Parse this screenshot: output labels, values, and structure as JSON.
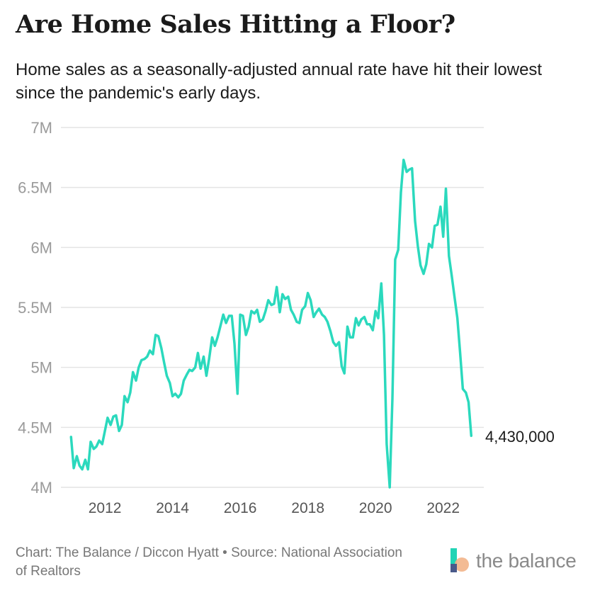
{
  "header": {
    "title": "Are Home Sales Hitting a Floor?",
    "subtitle": "Home sales as a seasonally-adjusted annual rate have hit their lowest since the pandemic's early days."
  },
  "footer": {
    "credit": "Chart: The Balance / Diccon Hyatt • Source: National Association of Realtors",
    "logo_text": "the balance"
  },
  "colors": {
    "line": "#2bd9bd",
    "grid": "#e4e4e4",
    "logo_teal": "#21d4b5",
    "logo_peach": "#f2b488"
  },
  "chart_data": {
    "type": "line",
    "title": "Are Home Sales Hitting a Floor?",
    "xlabel": "",
    "ylabel": "",
    "ylim": [
      4000000,
      7000000
    ],
    "xlim": [
      2010.7,
      2023.2
    ],
    "grid": true,
    "y_ticks": [
      {
        "value": 4000000,
        "label": "4M"
      },
      {
        "value": 4500000,
        "label": "4.5M"
      },
      {
        "value": 5000000,
        "label": "5M"
      },
      {
        "value": 5500000,
        "label": "5.5M"
      },
      {
        "value": 6000000,
        "label": "6M"
      },
      {
        "value": 6500000,
        "label": "6.5M"
      },
      {
        "value": 7000000,
        "label": "7M"
      }
    ],
    "x_ticks": [
      {
        "value": 2012,
        "label": "2012"
      },
      {
        "value": 2014,
        "label": "2014"
      },
      {
        "value": 2016,
        "label": "2016"
      },
      {
        "value": 2018,
        "label": "2018"
      },
      {
        "value": 2020,
        "label": "2020"
      },
      {
        "value": 2022,
        "label": "2022"
      }
    ],
    "end_label": "4,430,000",
    "series": [
      {
        "points": [
          [
            2011.0,
            4420000
          ],
          [
            2011.08,
            4160000
          ],
          [
            2011.17,
            4260000
          ],
          [
            2011.25,
            4180000
          ],
          [
            2011.33,
            4150000
          ],
          [
            2011.42,
            4230000
          ],
          [
            2011.5,
            4150000
          ],
          [
            2011.58,
            4380000
          ],
          [
            2011.67,
            4320000
          ],
          [
            2011.75,
            4340000
          ],
          [
            2011.83,
            4390000
          ],
          [
            2011.92,
            4360000
          ],
          [
            2012.0,
            4470000
          ],
          [
            2012.08,
            4580000
          ],
          [
            2012.17,
            4520000
          ],
          [
            2012.25,
            4590000
          ],
          [
            2012.33,
            4600000
          ],
          [
            2012.42,
            4470000
          ],
          [
            2012.5,
            4520000
          ],
          [
            2012.58,
            4760000
          ],
          [
            2012.67,
            4710000
          ],
          [
            2012.75,
            4790000
          ],
          [
            2012.83,
            4960000
          ],
          [
            2012.92,
            4890000
          ],
          [
            2013.0,
            5000000
          ],
          [
            2013.08,
            5060000
          ],
          [
            2013.17,
            5070000
          ],
          [
            2013.25,
            5090000
          ],
          [
            2013.33,
            5140000
          ],
          [
            2013.42,
            5110000
          ],
          [
            2013.5,
            5270000
          ],
          [
            2013.58,
            5260000
          ],
          [
            2013.67,
            5160000
          ],
          [
            2013.75,
            5040000
          ],
          [
            2013.83,
            4930000
          ],
          [
            2013.92,
            4870000
          ],
          [
            2014.0,
            4760000
          ],
          [
            2014.08,
            4780000
          ],
          [
            2014.17,
            4750000
          ],
          [
            2014.25,
            4780000
          ],
          [
            2014.33,
            4890000
          ],
          [
            2014.42,
            4940000
          ],
          [
            2014.5,
            4980000
          ],
          [
            2014.58,
            4970000
          ],
          [
            2014.67,
            5000000
          ],
          [
            2014.75,
            5120000
          ],
          [
            2014.83,
            4990000
          ],
          [
            2014.92,
            5090000
          ],
          [
            2015.0,
            4930000
          ],
          [
            2015.08,
            5070000
          ],
          [
            2015.17,
            5250000
          ],
          [
            2015.25,
            5180000
          ],
          [
            2015.33,
            5250000
          ],
          [
            2015.42,
            5350000
          ],
          [
            2015.5,
            5440000
          ],
          [
            2015.58,
            5370000
          ],
          [
            2015.67,
            5430000
          ],
          [
            2015.75,
            5430000
          ],
          [
            2015.83,
            5200000
          ],
          [
            2015.92,
            4780000
          ],
          [
            2016.0,
            5440000
          ],
          [
            2016.08,
            5430000
          ],
          [
            2016.17,
            5270000
          ],
          [
            2016.25,
            5340000
          ],
          [
            2016.33,
            5470000
          ],
          [
            2016.42,
            5450000
          ],
          [
            2016.5,
            5480000
          ],
          [
            2016.58,
            5380000
          ],
          [
            2016.67,
            5400000
          ],
          [
            2016.75,
            5470000
          ],
          [
            2016.83,
            5560000
          ],
          [
            2016.92,
            5520000
          ],
          [
            2017.0,
            5530000
          ],
          [
            2017.08,
            5670000
          ],
          [
            2017.17,
            5460000
          ],
          [
            2017.25,
            5610000
          ],
          [
            2017.33,
            5570000
          ],
          [
            2017.42,
            5590000
          ],
          [
            2017.5,
            5480000
          ],
          [
            2017.58,
            5440000
          ],
          [
            2017.67,
            5380000
          ],
          [
            2017.75,
            5370000
          ],
          [
            2017.83,
            5480000
          ],
          [
            2017.92,
            5510000
          ],
          [
            2018.0,
            5620000
          ],
          [
            2018.08,
            5560000
          ],
          [
            2018.17,
            5420000
          ],
          [
            2018.25,
            5460000
          ],
          [
            2018.33,
            5490000
          ],
          [
            2018.42,
            5440000
          ],
          [
            2018.5,
            5420000
          ],
          [
            2018.58,
            5380000
          ],
          [
            2018.67,
            5300000
          ],
          [
            2018.75,
            5210000
          ],
          [
            2018.83,
            5180000
          ],
          [
            2018.92,
            5210000
          ],
          [
            2019.0,
            5010000
          ],
          [
            2019.08,
            4950000
          ],
          [
            2019.17,
            5340000
          ],
          [
            2019.25,
            5250000
          ],
          [
            2019.33,
            5250000
          ],
          [
            2019.42,
            5410000
          ],
          [
            2019.5,
            5350000
          ],
          [
            2019.58,
            5400000
          ],
          [
            2019.67,
            5420000
          ],
          [
            2019.75,
            5360000
          ],
          [
            2019.83,
            5360000
          ],
          [
            2019.92,
            5310000
          ],
          [
            2020.0,
            5470000
          ],
          [
            2020.08,
            5410000
          ],
          [
            2020.17,
            5700000
          ],
          [
            2020.25,
            5270000
          ],
          [
            2020.33,
            4360000
          ],
          [
            2020.42,
            4000000
          ],
          [
            2020.5,
            4740000
          ],
          [
            2020.58,
            5900000
          ],
          [
            2020.67,
            5980000
          ],
          [
            2020.75,
            6460000
          ],
          [
            2020.83,
            6730000
          ],
          [
            2020.92,
            6630000
          ],
          [
            2021.0,
            6650000
          ],
          [
            2021.08,
            6660000
          ],
          [
            2021.17,
            6220000
          ],
          [
            2021.25,
            6010000
          ],
          [
            2021.33,
            5850000
          ],
          [
            2021.42,
            5780000
          ],
          [
            2021.5,
            5860000
          ],
          [
            2021.58,
            6030000
          ],
          [
            2021.67,
            6000000
          ],
          [
            2021.75,
            6180000
          ],
          [
            2021.83,
            6190000
          ],
          [
            2021.92,
            6340000
          ],
          [
            2022.0,
            6090000
          ],
          [
            2022.08,
            6490000
          ],
          [
            2022.17,
            5930000
          ],
          [
            2022.25,
            5770000
          ],
          [
            2022.33,
            5600000
          ],
          [
            2022.42,
            5410000
          ],
          [
            2022.5,
            5120000
          ],
          [
            2022.58,
            4820000
          ],
          [
            2022.67,
            4790000
          ],
          [
            2022.75,
            4710000
          ],
          [
            2022.83,
            4430000
          ]
        ]
      }
    ]
  }
}
